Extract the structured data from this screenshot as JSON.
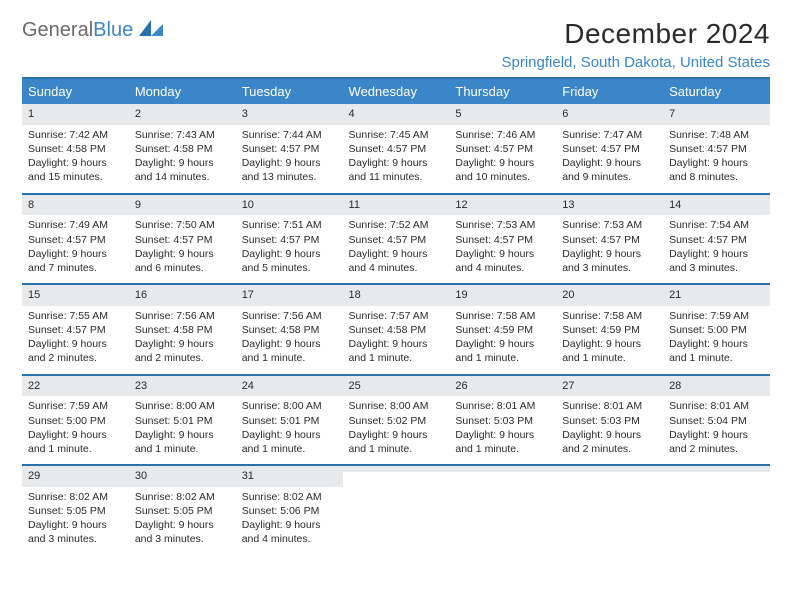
{
  "logo": {
    "word1": "General",
    "word2": "Blue"
  },
  "title": "December 2024",
  "location": "Springfield, South Dakota, United States",
  "colors": {
    "header_bg": "#3a86c8",
    "header_text": "#ffffff",
    "rule": "#2b71ab",
    "daynum_bg": "#e7e9eb",
    "text": "#2b2b2b",
    "logo_gray": "#6a6a6a",
    "logo_blue": "#3a86c8"
  },
  "fonts": {
    "title_pt": 28,
    "location_pt": 15,
    "dayhead_pt": 13,
    "body_pt": 10.5
  },
  "daynames": [
    "Sunday",
    "Monday",
    "Tuesday",
    "Wednesday",
    "Thursday",
    "Friday",
    "Saturday"
  ],
  "weeks": [
    [
      {
        "n": "1",
        "sr": "Sunrise: 7:42 AM",
        "ss": "Sunset: 4:58 PM",
        "d1": "Daylight: 9 hours",
        "d2": "and 15 minutes."
      },
      {
        "n": "2",
        "sr": "Sunrise: 7:43 AM",
        "ss": "Sunset: 4:58 PM",
        "d1": "Daylight: 9 hours",
        "d2": "and 14 minutes."
      },
      {
        "n": "3",
        "sr": "Sunrise: 7:44 AM",
        "ss": "Sunset: 4:57 PM",
        "d1": "Daylight: 9 hours",
        "d2": "and 13 minutes."
      },
      {
        "n": "4",
        "sr": "Sunrise: 7:45 AM",
        "ss": "Sunset: 4:57 PM",
        "d1": "Daylight: 9 hours",
        "d2": "and 11 minutes."
      },
      {
        "n": "5",
        "sr": "Sunrise: 7:46 AM",
        "ss": "Sunset: 4:57 PM",
        "d1": "Daylight: 9 hours",
        "d2": "and 10 minutes."
      },
      {
        "n": "6",
        "sr": "Sunrise: 7:47 AM",
        "ss": "Sunset: 4:57 PM",
        "d1": "Daylight: 9 hours",
        "d2": "and 9 minutes."
      },
      {
        "n": "7",
        "sr": "Sunrise: 7:48 AM",
        "ss": "Sunset: 4:57 PM",
        "d1": "Daylight: 9 hours",
        "d2": "and 8 minutes."
      }
    ],
    [
      {
        "n": "8",
        "sr": "Sunrise: 7:49 AM",
        "ss": "Sunset: 4:57 PM",
        "d1": "Daylight: 9 hours",
        "d2": "and 7 minutes."
      },
      {
        "n": "9",
        "sr": "Sunrise: 7:50 AM",
        "ss": "Sunset: 4:57 PM",
        "d1": "Daylight: 9 hours",
        "d2": "and 6 minutes."
      },
      {
        "n": "10",
        "sr": "Sunrise: 7:51 AM",
        "ss": "Sunset: 4:57 PM",
        "d1": "Daylight: 9 hours",
        "d2": "and 5 minutes."
      },
      {
        "n": "11",
        "sr": "Sunrise: 7:52 AM",
        "ss": "Sunset: 4:57 PM",
        "d1": "Daylight: 9 hours",
        "d2": "and 4 minutes."
      },
      {
        "n": "12",
        "sr": "Sunrise: 7:53 AM",
        "ss": "Sunset: 4:57 PM",
        "d1": "Daylight: 9 hours",
        "d2": "and 4 minutes."
      },
      {
        "n": "13",
        "sr": "Sunrise: 7:53 AM",
        "ss": "Sunset: 4:57 PM",
        "d1": "Daylight: 9 hours",
        "d2": "and 3 minutes."
      },
      {
        "n": "14",
        "sr": "Sunrise: 7:54 AM",
        "ss": "Sunset: 4:57 PM",
        "d1": "Daylight: 9 hours",
        "d2": "and 3 minutes."
      }
    ],
    [
      {
        "n": "15",
        "sr": "Sunrise: 7:55 AM",
        "ss": "Sunset: 4:57 PM",
        "d1": "Daylight: 9 hours",
        "d2": "and 2 minutes."
      },
      {
        "n": "16",
        "sr": "Sunrise: 7:56 AM",
        "ss": "Sunset: 4:58 PM",
        "d1": "Daylight: 9 hours",
        "d2": "and 2 minutes."
      },
      {
        "n": "17",
        "sr": "Sunrise: 7:56 AM",
        "ss": "Sunset: 4:58 PM",
        "d1": "Daylight: 9 hours",
        "d2": "and 1 minute."
      },
      {
        "n": "18",
        "sr": "Sunrise: 7:57 AM",
        "ss": "Sunset: 4:58 PM",
        "d1": "Daylight: 9 hours",
        "d2": "and 1 minute."
      },
      {
        "n": "19",
        "sr": "Sunrise: 7:58 AM",
        "ss": "Sunset: 4:59 PM",
        "d1": "Daylight: 9 hours",
        "d2": "and 1 minute."
      },
      {
        "n": "20",
        "sr": "Sunrise: 7:58 AM",
        "ss": "Sunset: 4:59 PM",
        "d1": "Daylight: 9 hours",
        "d2": "and 1 minute."
      },
      {
        "n": "21",
        "sr": "Sunrise: 7:59 AM",
        "ss": "Sunset: 5:00 PM",
        "d1": "Daylight: 9 hours",
        "d2": "and 1 minute."
      }
    ],
    [
      {
        "n": "22",
        "sr": "Sunrise: 7:59 AM",
        "ss": "Sunset: 5:00 PM",
        "d1": "Daylight: 9 hours",
        "d2": "and 1 minute."
      },
      {
        "n": "23",
        "sr": "Sunrise: 8:00 AM",
        "ss": "Sunset: 5:01 PM",
        "d1": "Daylight: 9 hours",
        "d2": "and 1 minute."
      },
      {
        "n": "24",
        "sr": "Sunrise: 8:00 AM",
        "ss": "Sunset: 5:01 PM",
        "d1": "Daylight: 9 hours",
        "d2": "and 1 minute."
      },
      {
        "n": "25",
        "sr": "Sunrise: 8:00 AM",
        "ss": "Sunset: 5:02 PM",
        "d1": "Daylight: 9 hours",
        "d2": "and 1 minute."
      },
      {
        "n": "26",
        "sr": "Sunrise: 8:01 AM",
        "ss": "Sunset: 5:03 PM",
        "d1": "Daylight: 9 hours",
        "d2": "and 1 minute."
      },
      {
        "n": "27",
        "sr": "Sunrise: 8:01 AM",
        "ss": "Sunset: 5:03 PM",
        "d1": "Daylight: 9 hours",
        "d2": "and 2 minutes."
      },
      {
        "n": "28",
        "sr": "Sunrise: 8:01 AM",
        "ss": "Sunset: 5:04 PM",
        "d1": "Daylight: 9 hours",
        "d2": "and 2 minutes."
      }
    ],
    [
      {
        "n": "29",
        "sr": "Sunrise: 8:02 AM",
        "ss": "Sunset: 5:05 PM",
        "d1": "Daylight: 9 hours",
        "d2": "and 3 minutes."
      },
      {
        "n": "30",
        "sr": "Sunrise: 8:02 AM",
        "ss": "Sunset: 5:05 PM",
        "d1": "Daylight: 9 hours",
        "d2": "and 3 minutes."
      },
      {
        "n": "31",
        "sr": "Sunrise: 8:02 AM",
        "ss": "Sunset: 5:06 PM",
        "d1": "Daylight: 9 hours",
        "d2": "and 4 minutes."
      },
      {
        "empty": true,
        "n": " ",
        "sr": "",
        "ss": "",
        "d1": "",
        "d2": ""
      },
      {
        "empty": true,
        "n": " ",
        "sr": "",
        "ss": "",
        "d1": "",
        "d2": ""
      },
      {
        "empty": true,
        "n": " ",
        "sr": "",
        "ss": "",
        "d1": "",
        "d2": ""
      },
      {
        "empty": true,
        "n": " ",
        "sr": "",
        "ss": "",
        "d1": "",
        "d2": ""
      }
    ]
  ]
}
